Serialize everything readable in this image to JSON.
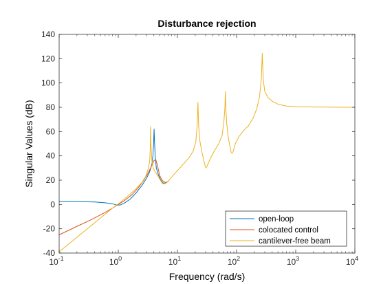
{
  "chart_data": {
    "type": "line",
    "title": "Disturbance rejection",
    "xlabel": "Frequency (rad/s)",
    "ylabel": "Singular Values (dB)",
    "xscale": "log",
    "xlim": [
      0.1,
      10000
    ],
    "ylim": [
      -40,
      140
    ],
    "yticks": [
      -40,
      -20,
      0,
      20,
      40,
      60,
      80,
      100,
      120,
      140
    ],
    "xticks": [
      0.1,
      1,
      10,
      100,
      1000,
      10000
    ],
    "xtick_labels": [
      {
        "base": "10",
        "exp": "-1"
      },
      {
        "base": "10",
        "exp": "0"
      },
      {
        "base": "10",
        "exp": "1"
      },
      {
        "base": "10",
        "exp": "2"
      },
      {
        "base": "10",
        "exp": "3"
      },
      {
        "base": "10",
        "exp": "4"
      }
    ],
    "grid": false,
    "box": true,
    "legend_position": "bottom-right",
    "series": [
      {
        "name": "open-loop",
        "color": "#0072BD",
        "points": [
          [
            0.1,
            2.5
          ],
          [
            0.2,
            2.4
          ],
          [
            0.4,
            2.0
          ],
          [
            0.6,
            1.4
          ],
          [
            0.8,
            0.5
          ],
          [
            0.9,
            -0.2
          ],
          [
            1.0,
            -0.5
          ],
          [
            1.1,
            -0.3
          ],
          [
            1.3,
            1.5
          ],
          [
            1.6,
            4.5
          ],
          [
            2.0,
            9.5
          ],
          [
            2.5,
            15.5
          ],
          [
            3.0,
            21.5
          ],
          [
            3.4,
            27
          ],
          [
            3.7,
            33
          ],
          [
            3.85,
            40
          ],
          [
            3.95,
            50
          ],
          [
            4.03,
            62
          ],
          [
            4.1,
            52
          ],
          [
            4.2,
            40
          ],
          [
            4.4,
            30
          ],
          [
            4.8,
            24
          ],
          [
            5.3,
            19.5
          ],
          [
            5.8,
            17.5
          ],
          [
            6.3,
            17.7
          ],
          [
            6.7,
            18.6
          ]
        ]
      },
      {
        "name": "colocated control",
        "color": "#D95319",
        "points": [
          [
            0.1,
            -25
          ],
          [
            0.2,
            -18
          ],
          [
            0.35,
            -12.5
          ],
          [
            0.6,
            -6.5
          ],
          [
            0.8,
            -3.0
          ],
          [
            1.0,
            0.0
          ],
          [
            1.3,
            3.5
          ],
          [
            1.7,
            8.0
          ],
          [
            2.2,
            14.0
          ],
          [
            2.7,
            20.0
          ],
          [
            3.2,
            26.0
          ],
          [
            3.6,
            31.0
          ],
          [
            4.0,
            36.0
          ],
          [
            4.3,
            37.0
          ],
          [
            4.6,
            32.0
          ],
          [
            5.0,
            24.0
          ],
          [
            5.5,
            20.0
          ],
          [
            6.0,
            18.5
          ],
          [
            6.5,
            18.0
          ],
          [
            7.0,
            18.8
          ]
        ]
      },
      {
        "name": "cantilever-free beam",
        "color": "#EDB120",
        "points": [
          [
            0.1,
            -39
          ],
          [
            0.2,
            -27
          ],
          [
            0.4,
            -15
          ],
          [
            0.6,
            -8
          ],
          [
            0.8,
            -3
          ],
          [
            1.0,
            0.5
          ],
          [
            1.5,
            7.5
          ],
          [
            2.0,
            13
          ],
          [
            2.5,
            18
          ],
          [
            2.9,
            23
          ],
          [
            3.2,
            29
          ],
          [
            3.4,
            36
          ],
          [
            3.48,
            48
          ],
          [
            3.52,
            64
          ],
          [
            3.58,
            48
          ],
          [
            3.7,
            36
          ],
          [
            3.9,
            30
          ],
          [
            4.2,
            27
          ],
          [
            4.6,
            24
          ],
          [
            5.0,
            21
          ],
          [
            5.6,
            17
          ],
          [
            6.1,
            17
          ],
          [
            6.6,
            18
          ],
          [
            7.5,
            21
          ],
          [
            9,
            25.5
          ],
          [
            11,
            30
          ],
          [
            13,
            34
          ],
          [
            16,
            39
          ],
          [
            18.5,
            44
          ],
          [
            20.5,
            52
          ],
          [
            21.5,
            64
          ],
          [
            22.2,
            84
          ],
          [
            22.9,
            64
          ],
          [
            24,
            52
          ],
          [
            26,
            43
          ],
          [
            28,
            36
          ],
          [
            29.5,
            31.5
          ],
          [
            30.5,
            30
          ],
          [
            32,
            32
          ],
          [
            36,
            38
          ],
          [
            42,
            44
          ],
          [
            50,
            50
          ],
          [
            57,
            57
          ],
          [
            61,
            68
          ],
          [
            63.5,
            80
          ],
          [
            64.6,
            93
          ],
          [
            65.8,
            80
          ],
          [
            68,
            67
          ],
          [
            72,
            56
          ],
          [
            77,
            48
          ],
          [
            81,
            43
          ],
          [
            84,
            42
          ],
          [
            88,
            44
          ],
          [
            95,
            50
          ],
          [
            110,
            56
          ],
          [
            130,
            60.5
          ],
          [
            160,
            65
          ],
          [
            190,
            71
          ],
          [
            220,
            79
          ],
          [
            245,
            89
          ],
          [
            262,
            103
          ],
          [
            272,
            124.5
          ],
          [
            282,
            103
          ],
          [
            300,
            93
          ],
          [
            340,
            88
          ],
          [
            400,
            85
          ],
          [
            500,
            82.5
          ],
          [
            700,
            81
          ],
          [
            1000,
            80.5
          ],
          [
            2000,
            80.2
          ],
          [
            10000,
            80.0
          ]
        ]
      }
    ]
  }
}
